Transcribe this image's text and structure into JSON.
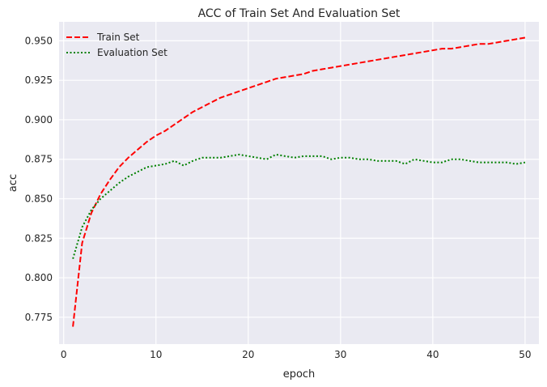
{
  "chart_data": {
    "type": "line",
    "title": "ACC of Train Set And Evaluation Set",
    "xlabel": "epoch",
    "ylabel": "acc",
    "xlim": [
      -0.5,
      51.5
    ],
    "ylim": [
      0.758,
      0.962
    ],
    "xticks": [
      0,
      10,
      20,
      30,
      40,
      50
    ],
    "yticks": [
      0.775,
      0.8,
      0.825,
      0.85,
      0.875,
      0.9,
      0.925,
      0.95
    ],
    "ytick_labels": [
      "0.775",
      "0.800",
      "0.825",
      "0.850",
      "0.875",
      "0.900",
      "0.925",
      "0.950"
    ],
    "grid": true,
    "legend_position": "top-left",
    "x": [
      1,
      2,
      3,
      4,
      5,
      6,
      7,
      8,
      9,
      10,
      11,
      12,
      13,
      14,
      15,
      16,
      17,
      18,
      19,
      20,
      21,
      22,
      23,
      24,
      25,
      26,
      27,
      28,
      29,
      30,
      31,
      32,
      33,
      34,
      35,
      36,
      37,
      38,
      39,
      40,
      41,
      42,
      43,
      44,
      45,
      46,
      47,
      48,
      49,
      50
    ],
    "series": [
      {
        "name": "Train Set",
        "color": "#ff0000",
        "style": "dashed",
        "values": [
          0.769,
          0.822,
          0.841,
          0.853,
          0.862,
          0.87,
          0.876,
          0.881,
          0.886,
          0.89,
          0.893,
          0.897,
          0.901,
          0.905,
          0.908,
          0.911,
          0.914,
          0.916,
          0.918,
          0.92,
          0.922,
          0.924,
          0.926,
          0.927,
          0.928,
          0.929,
          0.931,
          0.932,
          0.933,
          0.934,
          0.935,
          0.936,
          0.937,
          0.938,
          0.939,
          0.94,
          0.941,
          0.942,
          0.943,
          0.944,
          0.945,
          0.945,
          0.946,
          0.947,
          0.948,
          0.948,
          0.949,
          0.95,
          0.951,
          0.952
        ]
      },
      {
        "name": "Evaluation Set",
        "color": "#008000",
        "style": "dotted",
        "values": [
          0.812,
          0.832,
          0.843,
          0.85,
          0.855,
          0.86,
          0.864,
          0.867,
          0.87,
          0.871,
          0.872,
          0.874,
          0.871,
          0.874,
          0.876,
          0.876,
          0.876,
          0.877,
          0.878,
          0.877,
          0.876,
          0.875,
          0.878,
          0.877,
          0.876,
          0.877,
          0.877,
          0.877,
          0.875,
          0.876,
          0.876,
          0.875,
          0.875,
          0.874,
          0.874,
          0.874,
          0.872,
          0.875,
          0.874,
          0.873,
          0.873,
          0.875,
          0.875,
          0.874,
          0.873,
          0.873,
          0.873,
          0.873,
          0.872,
          0.873
        ]
      }
    ]
  }
}
